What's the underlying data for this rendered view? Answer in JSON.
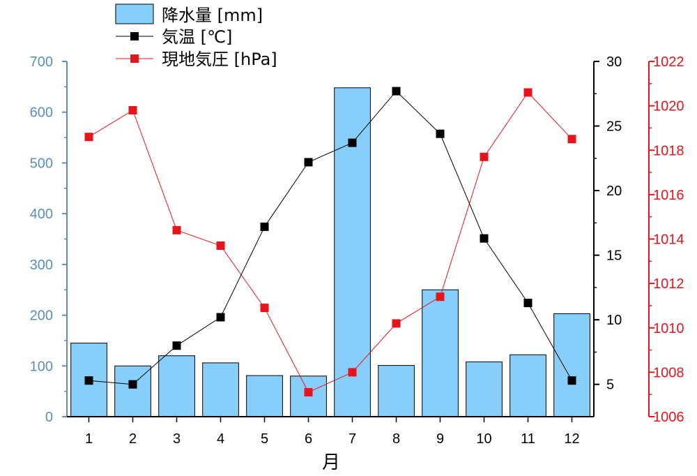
{
  "chart_data": {
    "type": "bar",
    "categories": [
      "1",
      "2",
      "3",
      "4",
      "5",
      "6",
      "7",
      "8",
      "9",
      "10",
      "11",
      "12"
    ],
    "xlabel": "月",
    "series": [
      {
        "name": "降水量 [mm]",
        "type": "bar",
        "axis": "left",
        "color": "#87cefa",
        "values": [
          145,
          100,
          120,
          106,
          81,
          80,
          648,
          101,
          250,
          108,
          122,
          203
        ]
      },
      {
        "name": "気温 [℃]",
        "type": "line",
        "axis": "right",
        "color": "#000000",
        "values": [
          5.3,
          5.0,
          8.0,
          10.2,
          17.2,
          22.2,
          23.7,
          27.7,
          24.4,
          16.3,
          11.3,
          5.3
        ]
      },
      {
        "name": "現地気圧 [hPa]",
        "type": "line",
        "axis": "right2",
        "color": "#e8141c",
        "values": [
          1018.6,
          1019.8,
          1014.4,
          1013.7,
          1010.9,
          1007.1,
          1008.0,
          1010.2,
          1011.4,
          1017.7,
          1020.6,
          1018.5
        ]
      }
    ],
    "axes": {
      "left": {
        "ylim": [
          0,
          700
        ],
        "ticks": [
          "0",
          "100",
          "200",
          "300",
          "400",
          "500",
          "600",
          "700"
        ],
        "color": "#5b8fb9"
      },
      "right": {
        "ylim": [
          2.5,
          30
        ],
        "ticks": [
          "5",
          "10",
          "15",
          "20",
          "25",
          "30"
        ],
        "color": "#000000"
      },
      "right2": {
        "ylim": [
          1006,
          1022
        ],
        "ticks": [
          "1006",
          "1008",
          "1010",
          "1012",
          "1014",
          "1016",
          "1018",
          "1020",
          "1022"
        ],
        "color": "#e8141c"
      }
    },
    "grid": false,
    "legend_position": "top-left"
  }
}
